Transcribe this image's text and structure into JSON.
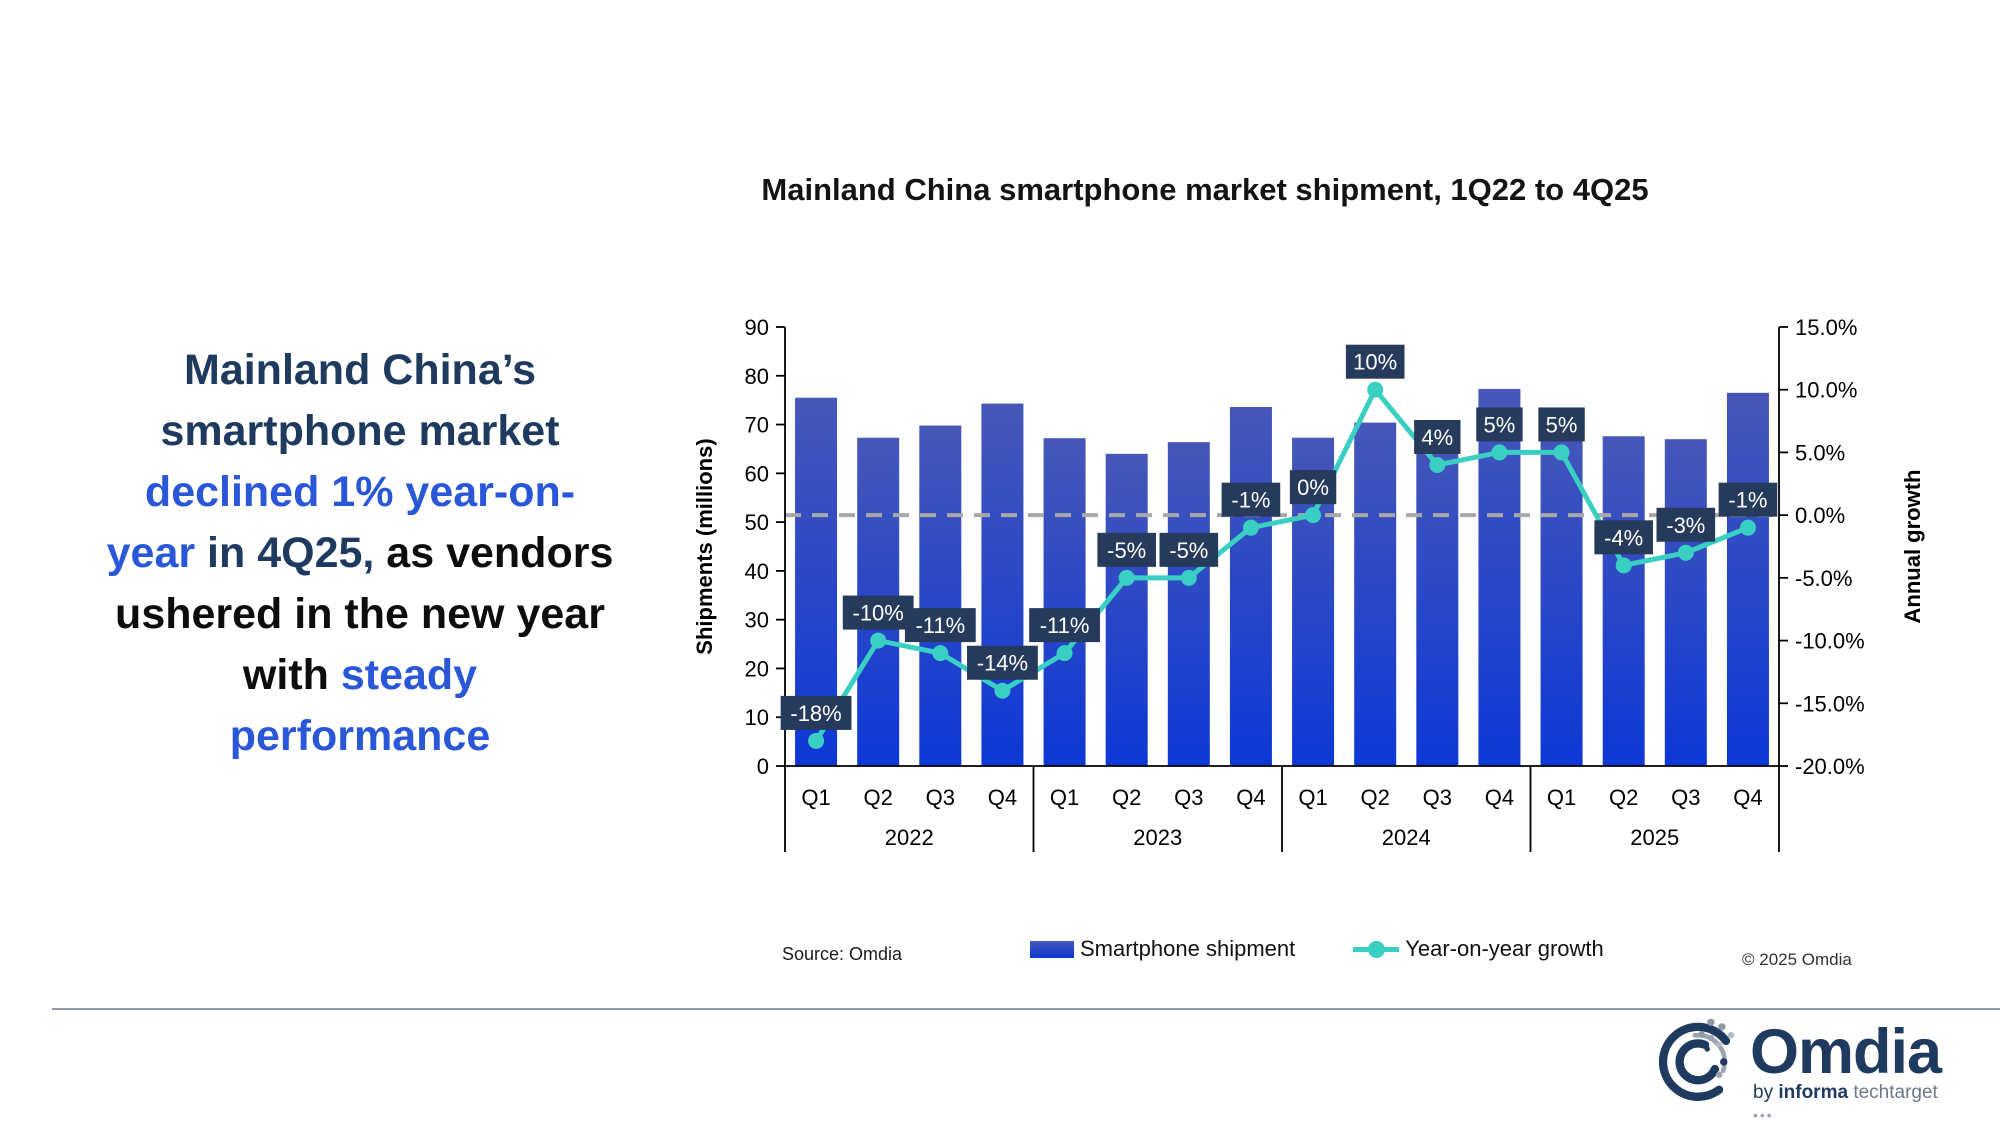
{
  "headline": {
    "line1": "Mainland China’s",
    "line2": "smartphone market",
    "line3": "declined 1% year-on-",
    "line4_blue": "year",
    "line4_navy": " in 4Q25,",
    "line4_black": " as vendors",
    "line5": "ushered in the new year",
    "line6_black": "with ",
    "line6_blue": "steady",
    "line7": "performance"
  },
  "chart_data": {
    "type": "bar",
    "subtype": "bar-line-combo",
    "title": "Mainland China smartphone market shipment, 1Q22 to 4Q25",
    "categories": [
      "Q1",
      "Q2",
      "Q3",
      "Q4",
      "Q1",
      "Q2",
      "Q3",
      "Q4",
      "Q1",
      "Q2",
      "Q3",
      "Q4",
      "Q1",
      "Q2",
      "Q3",
      "Q4"
    ],
    "year_groups": [
      "2022",
      "2023",
      "2024",
      "2025"
    ],
    "series": [
      {
        "name": "Smartphone shipment",
        "type": "bar",
        "axis": "left",
        "values": [
          75.5,
          67.3,
          69.8,
          74.3,
          67.2,
          64.0,
          66.4,
          73.6,
          67.3,
          70.4,
          69.1,
          77.3,
          71.0,
          67.6,
          67.0,
          76.5
        ]
      },
      {
        "name": "Year-on-year growth",
        "type": "line",
        "axis": "right",
        "values": [
          -18,
          -10,
          -11,
          -14,
          -11,
          -5,
          -5,
          -1,
          0,
          10,
          4,
          5,
          5,
          -4,
          -3,
          -1
        ],
        "labels": [
          "-18%",
          "-10%",
          "-11%",
          "-14%",
          "-11%",
          "-5%",
          "-5%",
          "-1%",
          "0%",
          "10%",
          "4%",
          "5%",
          "5%",
          "-4%",
          "-3%",
          "-1%"
        ]
      }
    ],
    "left_axis": {
      "title": "Shipments (millions)",
      "min": 0,
      "max": 90,
      "step": 10,
      "tick_labels": [
        "0",
        "10",
        "20",
        "30",
        "40",
        "50",
        "60",
        "70",
        "80",
        "90"
      ]
    },
    "right_axis": {
      "title": "Annual growth",
      "min": -20,
      "max": 15,
      "step": 5,
      "tick_labels_top_down": [
        "15.0%",
        "10.0%",
        "5.0%",
        "0.0%",
        "-5.0%",
        "-10.0%",
        "-15.0%",
        "-20.0%"
      ]
    },
    "zero_gridline": {
      "at_percent": 0,
      "style": "dashed",
      "color": "#a8a8a8"
    },
    "legend_position": "bottom",
    "colors": {
      "bar_top": "#4657b8",
      "bar_bottom": "#0d38d6",
      "line": "#39cfc2",
      "label_box": "#263a5c",
      "label_text": "#ffffff",
      "axis": "#000000"
    }
  },
  "legend": {
    "bar_label": "Smartphone shipment",
    "line_label": "Year-on-year growth"
  },
  "source": "Source: Omdia",
  "copyright": "© 2025 Omdia",
  "logo": {
    "word": "Omdia",
    "byline_by": "by ",
    "byline_informa": "informa",
    "byline_techtarget": " techtarget ",
    "dots": "•••"
  }
}
